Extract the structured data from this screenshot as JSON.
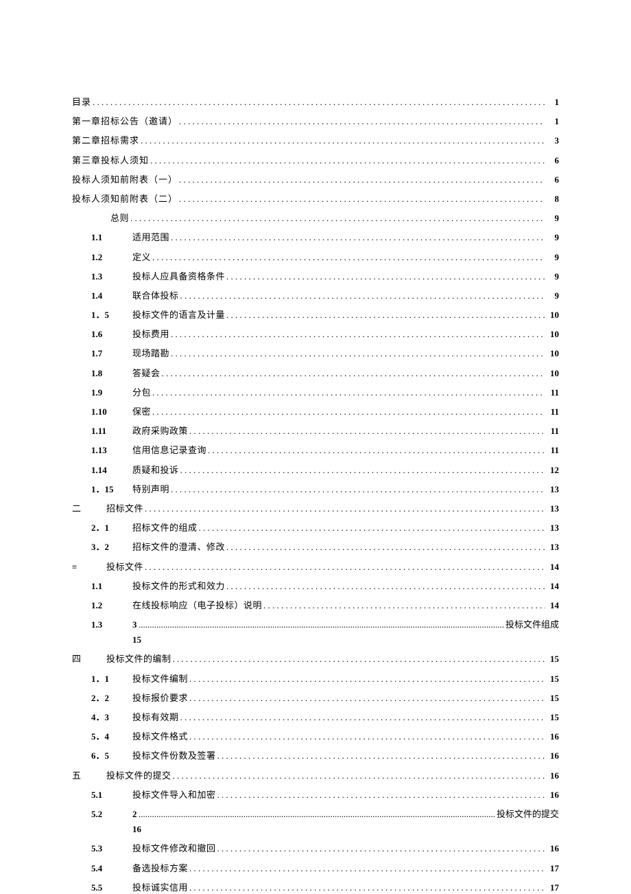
{
  "document": {
    "text_color": "#000000",
    "background_color": "#ffffff",
    "font_family": "SimSun",
    "base_font_size": 13
  },
  "toc": [
    {
      "type": "top",
      "label": "目录",
      "page": "1"
    },
    {
      "type": "top",
      "label": "第一章招标公告（邀请）",
      "page": "1"
    },
    {
      "type": "top",
      "label": "第二章招标需求",
      "page": "3"
    },
    {
      "type": "top",
      "label": "第三章投标人须知",
      "page": "6"
    },
    {
      "type": "top",
      "label": "投标人须知前附表（一）",
      "page": "6"
    },
    {
      "type": "top",
      "label": "投标人须知前附表（二）",
      "page": "8"
    },
    {
      "type": "ind1",
      "label": "总则",
      "page": "9"
    },
    {
      "type": "sub",
      "num": "1.1",
      "label": "适用范围",
      "page": "9"
    },
    {
      "type": "sub",
      "num": "1.2",
      "label": "定义",
      "page": "9"
    },
    {
      "type": "sub",
      "num": "1.3",
      "label": "投标人应具备资格条件",
      "page": "9"
    },
    {
      "type": "sub",
      "num": "1.4",
      "label": "联合体投标",
      "page": "9"
    },
    {
      "type": "sub",
      "num": "1．5",
      "label": "投标文件的语言及计量",
      "page": "10"
    },
    {
      "type": "sub",
      "num": "1.6",
      "label": "投标费用",
      "page": "10"
    },
    {
      "type": "sub",
      "num": "1.7",
      "label": "现场踏勘",
      "page": "10"
    },
    {
      "type": "sub",
      "num": "1.8",
      "label": "答疑会",
      "page": "10"
    },
    {
      "type": "sub",
      "num": "1.9",
      "label": "分包",
      "page": "11"
    },
    {
      "type": "sub",
      "num": "1.10",
      "label": "保密",
      "page": "11"
    },
    {
      "type": "sub",
      "num": "1.11",
      "label": "政府采购政策",
      "page": "11"
    },
    {
      "type": "sub",
      "num": "1.13",
      "label": "信用信息记录查询",
      "page": "11"
    },
    {
      "type": "sub",
      "num": "1.14",
      "label": "质疑和投诉",
      "page": "12"
    },
    {
      "type": "sub",
      "num": "1．15",
      "label": "特别声明",
      "page": "13"
    },
    {
      "type": "sec",
      "secnum": "二",
      "label": "招标文件",
      "page": "13"
    },
    {
      "type": "sub",
      "num": "2．1",
      "label": "招标文件的组成",
      "page": "13"
    },
    {
      "type": "sub",
      "num": "3．2",
      "label": "招标文件的澄清、修改",
      "page": "13"
    },
    {
      "type": "sec",
      "secnum": "≡",
      "label": "投标文件",
      "page": "14"
    },
    {
      "type": "sub",
      "num": "1.1",
      "label": "投标文件的形式和效力",
      "page": "14"
    },
    {
      "type": "sub",
      "num": "1.2",
      "label": "在线投标响应（电子投标）说明",
      "page": "14"
    },
    {
      "type": "subwrap",
      "num": "1.3",
      "prefix": "3",
      "trail": "投标文件组成",
      "page": "15"
    },
    {
      "type": "sec",
      "secnum": "四",
      "label": "投标文件的编制",
      "page": "15"
    },
    {
      "type": "sub",
      "num": "1．1",
      "label": "投标文件编制",
      "page": "15"
    },
    {
      "type": "sub",
      "num": "2．2",
      "label": "投标报价要求",
      "page": "15"
    },
    {
      "type": "sub",
      "num": "4．3",
      "label": "投标有效期",
      "page": "15"
    },
    {
      "type": "sub",
      "num": "5．4",
      "label": "投标文件格式",
      "page": "16"
    },
    {
      "type": "sub",
      "num": "6．5",
      "label": "投标文件份数及签署",
      "page": "16"
    },
    {
      "type": "sec",
      "secnum": "五",
      "label": "投标文件的提交",
      "page": "16"
    },
    {
      "type": "sub",
      "num": "5.1",
      "label": "投标文件导入和加密",
      "page": "16"
    },
    {
      "type": "subwrap",
      "num": "5.2",
      "prefix": "2",
      "trail": "投标文件的提交",
      "page": "16"
    },
    {
      "type": "sub",
      "num": "5.3",
      "label": "投标文件修改和撤回",
      "page": "16"
    },
    {
      "type": "sub",
      "num": "5.4",
      "label": "备选投标方案",
      "page": "17"
    },
    {
      "type": "sub",
      "num": "5.5",
      "label": "投标诚实信用",
      "page": "17"
    }
  ]
}
